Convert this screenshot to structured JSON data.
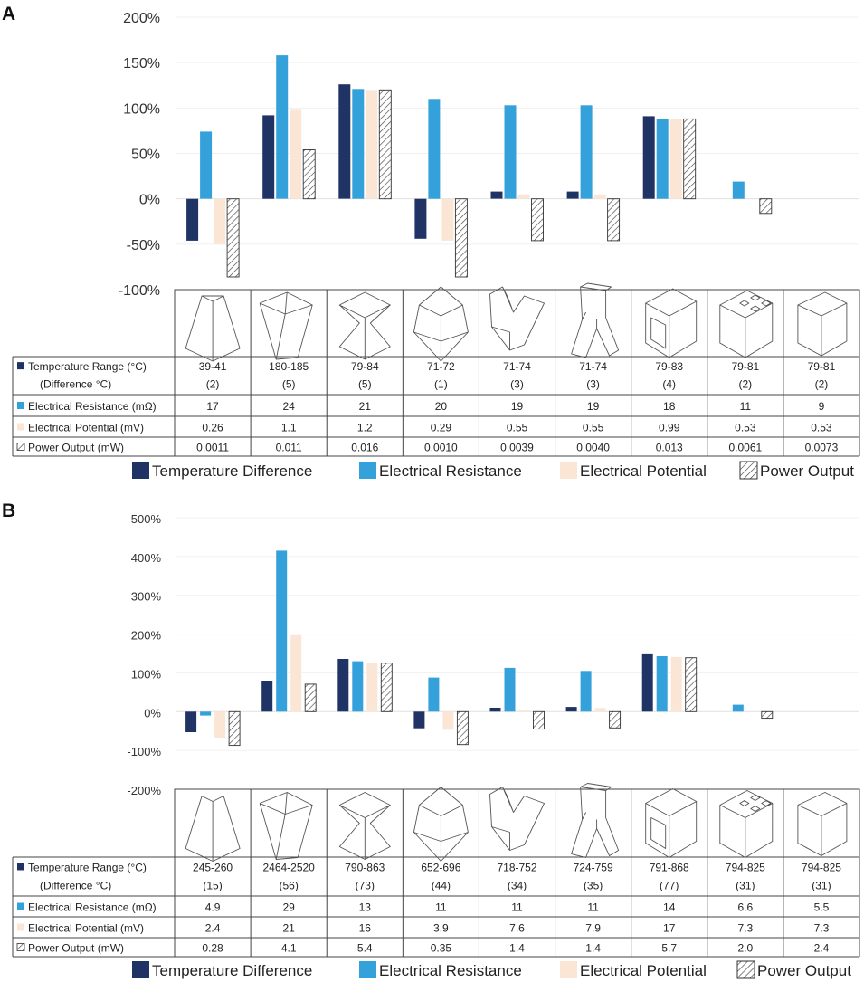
{
  "colors": {
    "temperature": "#1f3465",
    "resistance": "#35a1da",
    "potential": "#fbe6d6",
    "power_hatch": "#444444"
  },
  "shape_icons": [
    "frustum-icon",
    "tapered-prism-icon",
    "hourglass-icon",
    "diamond-prism-icon",
    "v-shape-icon",
    "inverted-y-shape-icon",
    "hollow-frame-cube-icon",
    "perforated-cube-icon",
    "cube-icon"
  ],
  "chart_data": [
    {
      "panel": "A",
      "type": "bar",
      "ylim": [
        -100,
        200
      ],
      "yticks": [
        "-100%",
        "-50%",
        "0%",
        "50%",
        "100%",
        "150%",
        "200%"
      ],
      "yvalues": [
        -100,
        -50,
        0,
        50,
        100,
        150,
        200
      ],
      "series": [
        {
          "name": "Temperature Difference",
          "key": "temperature",
          "values": [
            -46,
            92,
            126,
            -44,
            8,
            8,
            91,
            0,
            0
          ]
        },
        {
          "name": "Electrical Resistance",
          "key": "resistance",
          "values": [
            74,
            158,
            121,
            110,
            103,
            103,
            88,
            19,
            0
          ]
        },
        {
          "name": "Electrical Potential",
          "key": "potential",
          "values": [
            -50,
            99,
            120,
            -46,
            5,
            5,
            88,
            0,
            0
          ]
        },
        {
          "name": "Power Output",
          "key": "power",
          "values": [
            -86,
            54,
            120,
            -86,
            -46,
            -46,
            88,
            -16,
            0
          ]
        }
      ],
      "table": {
        "rows": [
          {
            "label": "Temperature Range (°C)",
            "sublabel": "(Difference °C)",
            "key": "temperature",
            "values": [
              "39-41",
              "180-185",
              "79-84",
              "71-72",
              "71-74",
              "71-74",
              "79-83",
              "79-81",
              "79-81"
            ],
            "subvalues": [
              "(2)",
              "(5)",
              "(5)",
              "(1)",
              "(3)",
              "(3)",
              "(4)",
              "(2)",
              "(2)"
            ]
          },
          {
            "label": "Electrical Resistance (mΩ)",
            "key": "resistance",
            "values": [
              "17",
              "24",
              "21",
              "20",
              "19",
              "19",
              "18",
              "11",
              "9"
            ]
          },
          {
            "label": "Electrical Potential (mV)",
            "key": "potential",
            "values": [
              "0.26",
              "1.1",
              "1.2",
              "0.29",
              "0.55",
              "0.55",
              "0.99",
              "0.53",
              "0.53"
            ]
          },
          {
            "label": "Power Output (mW)",
            "key": "power",
            "values": [
              "0.0011",
              "0.011",
              "0.016",
              "0.0010",
              "0.0039",
              "0.0040",
              "0.013",
              "0.0061",
              "0.0073"
            ]
          }
        ]
      },
      "legend": [
        "Temperature Difference",
        "Electrical Resistance",
        "Electrical Potential",
        "Power Output"
      ]
    },
    {
      "panel": "B",
      "type": "bar",
      "ylim": [
        -200,
        500
      ],
      "yticks": [
        "-200%",
        "-100%",
        "0%",
        "100%",
        "200%",
        "300%",
        "400%",
        "500%"
      ],
      "yvalues": [
        -200,
        -100,
        0,
        100,
        200,
        300,
        400,
        500
      ],
      "series": [
        {
          "name": "Temperature Difference",
          "key": "temperature",
          "values": [
            -53,
            80,
            136,
            -43,
            10,
            12,
            148,
            0,
            0
          ]
        },
        {
          "name": "Electrical Resistance",
          "key": "resistance",
          "values": [
            -10,
            415,
            130,
            88,
            113,
            105,
            143,
            18,
            0
          ]
        },
        {
          "name": "Electrical Potential",
          "key": "potential",
          "values": [
            -67,
            197,
            126,
            -47,
            3,
            9,
            141,
            0,
            0
          ]
        },
        {
          "name": "Power Output",
          "key": "power",
          "values": [
            -87,
            71,
            125,
            -85,
            -45,
            -42,
            139,
            -17,
            0
          ]
        }
      ],
      "table": {
        "rows": [
          {
            "label": "Temperature Range (°C)",
            "sublabel": "(Difference °C)",
            "key": "temperature",
            "values": [
              "245-260",
              "2464-2520",
              "790-863",
              "652-696",
              "718-752",
              "724-759",
              "791-868",
              "794-825",
              "794-825"
            ],
            "subvalues": [
              "(15)",
              "(56)",
              "(73)",
              "(44)",
              "(34)",
              "(35)",
              "(77)",
              "(31)",
              "(31)"
            ]
          },
          {
            "label": "Electrical Resistance (mΩ)",
            "key": "resistance",
            "values": [
              "4.9",
              "29",
              "13",
              "11",
              "11",
              "11",
              "14",
              "6.6",
              "5.5"
            ]
          },
          {
            "label": "Electrical Potential (mV)",
            "key": "potential",
            "values": [
              "2.4",
              "21",
              "16",
              "3.9",
              "7.6",
              "7.9",
              "17",
              "7.3",
              "7.3"
            ]
          },
          {
            "label": "Power Output (mW)",
            "key": "power",
            "values": [
              "0.28",
              "4.1",
              "5.4",
              "0.35",
              "1.4",
              "1.4",
              "5.7",
              "2.0",
              "2.4"
            ]
          }
        ]
      },
      "legend": [
        "Temperature Difference",
        "Electrical Resistance",
        "Electrical Potential",
        "Power Output"
      ]
    }
  ]
}
